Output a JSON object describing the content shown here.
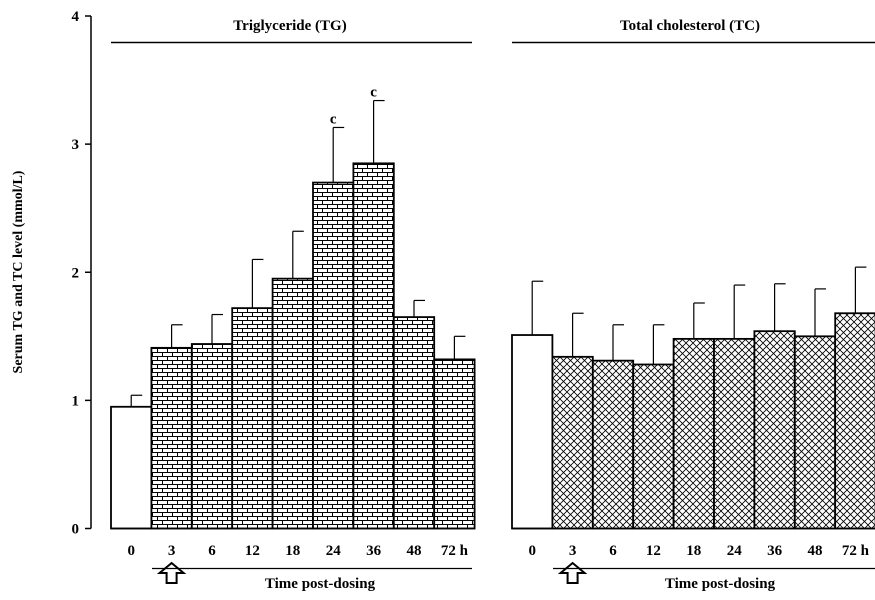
{
  "chart_data": [
    {
      "type": "bar",
      "title": "Triglyceride (TG)",
      "xlabel": "Time post-dosing",
      "ylabel": "Serum TG and TC level (mmol/L)",
      "ylim": [
        0,
        4
      ],
      "yticks": [
        "0",
        "1",
        "2",
        "3",
        "4"
      ],
      "categories": [
        "0",
        "3",
        "6",
        "12",
        "18",
        "24",
        "36",
        "48",
        "72 h"
      ],
      "values": [
        0.95,
        1.41,
        1.44,
        1.72,
        1.95,
        2.7,
        2.85,
        1.65,
        1.32
      ],
      "errors": [
        0.09,
        0.18,
        0.23,
        0.38,
        0.37,
        0.43,
        0.49,
        0.13,
        0.18
      ],
      "annotations": [
        "",
        "",
        "",
        "",
        "",
        "c",
        "c",
        "",
        ""
      ],
      "pattern": "bricks",
      "first_bar_fill": "white"
    },
    {
      "type": "bar",
      "title": "Total cholesterol (TC)",
      "xlabel": "Time post-dosing",
      "ylim": [
        0,
        4
      ],
      "categories": [
        "0",
        "3",
        "6",
        "12",
        "18",
        "24",
        "36",
        "48",
        "72 h"
      ],
      "values": [
        1.51,
        1.34,
        1.31,
        1.28,
        1.48,
        1.48,
        1.54,
        1.5,
        1.68
      ],
      "errors": [
        0.42,
        0.34,
        0.28,
        0.31,
        0.28,
        0.42,
        0.37,
        0.37,
        0.36
      ],
      "annotations": [
        "",
        "",
        "",
        "",
        "",
        "",
        "",
        "",
        ""
      ],
      "pattern": "crosshatch",
      "first_bar_fill": "white"
    }
  ],
  "dosing_marker": {
    "category": "3",
    "icon": "up-arrow-icon"
  }
}
